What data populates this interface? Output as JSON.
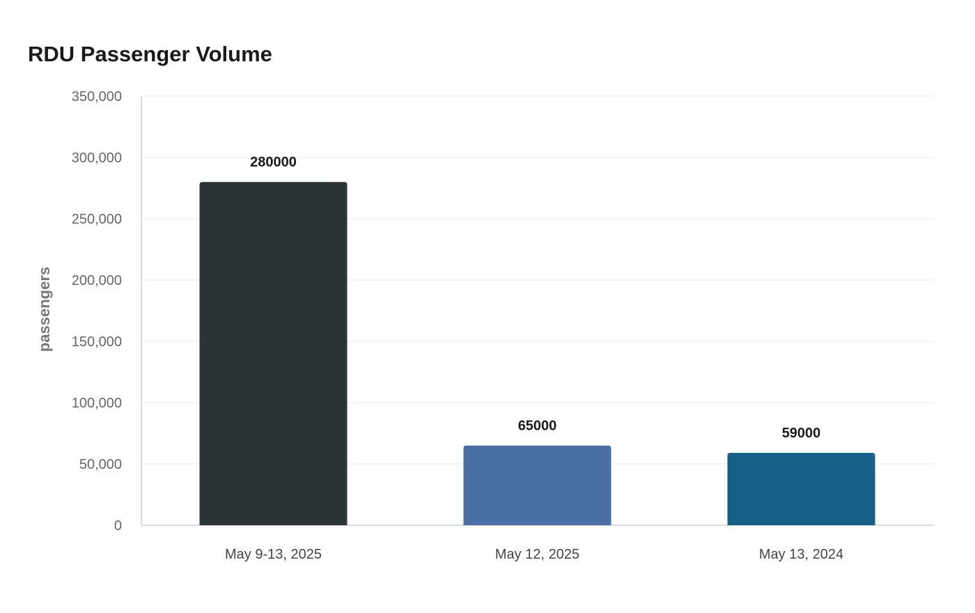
{
  "chart_data": {
    "type": "bar",
    "title": "RDU Passenger Volume",
    "xlabel": "",
    "ylabel": "passengers",
    "categories": [
      "May 9-13, 2025",
      "May 12, 2025",
      "May 13, 2024"
    ],
    "values": [
      280000,
      65000,
      59000
    ],
    "value_labels": [
      "280000",
      "65000",
      "59000"
    ],
    "colors": [
      "#2d3436",
      "#4a6fa5",
      "#166088"
    ],
    "ylim": [
      0,
      350000
    ],
    "yticks": [
      0,
      50000,
      100000,
      150000,
      200000,
      250000,
      300000,
      350000
    ],
    "ytick_labels": [
      "0",
      "50,000",
      "100,000",
      "150,000",
      "200,000",
      "250,000",
      "300,000",
      "350,000"
    ],
    "grid": true,
    "legend": "none"
  }
}
